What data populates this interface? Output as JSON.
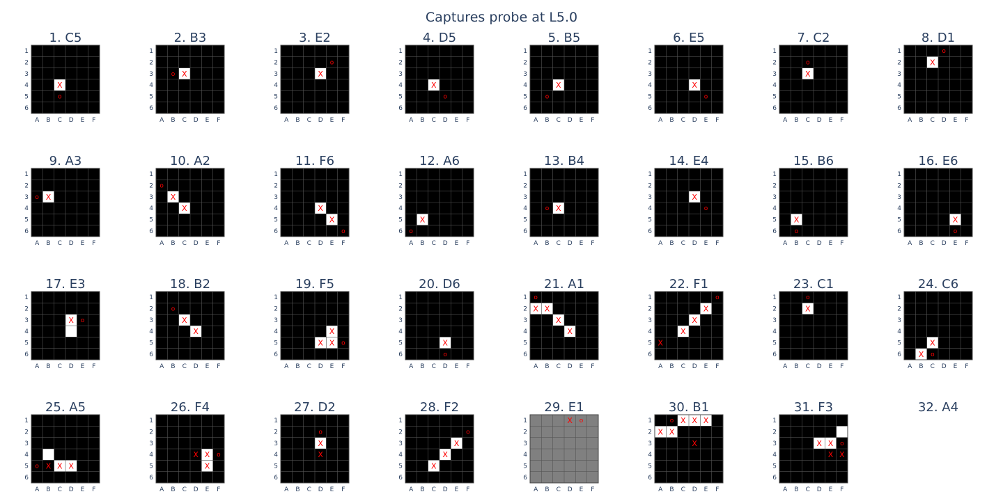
{
  "title": "Captures probe at L5.0",
  "colors": {
    "background": "#000000",
    "cell_fill": "#ffffff",
    "inactive_background": "#808080",
    "grid": "#555555",
    "mark": "#ff0000",
    "text": "#2a3f5f"
  },
  "chart_data": {
    "type": "heatmap",
    "title": "Captures probe at L5.0",
    "columns": [
      "A",
      "B",
      "C",
      "D",
      "E",
      "F"
    ],
    "rows": [
      "1",
      "2",
      "3",
      "4",
      "5",
      "6"
    ],
    "panels": [
      {
        "title": "1. C5",
        "white": [
          "C4"
        ],
        "x": [
          "C4"
        ],
        "o": [
          "C5"
        ]
      },
      {
        "title": "2. B3",
        "white": [
          "C3"
        ],
        "x": [
          "C3"
        ],
        "o": [
          "B3"
        ]
      },
      {
        "title": "3. E2",
        "white": [
          "D3"
        ],
        "x": [
          "D3"
        ],
        "o": [
          "E2"
        ]
      },
      {
        "title": "4. D5",
        "white": [
          "C4"
        ],
        "x": [
          "C4"
        ],
        "o": [
          "D5"
        ]
      },
      {
        "title": "5. B5",
        "white": [
          "C4"
        ],
        "x": [
          "C4"
        ],
        "o": [
          "B5"
        ]
      },
      {
        "title": "6. E5",
        "white": [
          "D4"
        ],
        "x": [
          "D4"
        ],
        "o": [
          "E5"
        ]
      },
      {
        "title": "7. C2",
        "white": [
          "C3"
        ],
        "x": [
          "C3"
        ],
        "o": [
          "C2"
        ]
      },
      {
        "title": "8. D1",
        "white": [
          "C2"
        ],
        "x": [
          "C2"
        ],
        "o": [
          "D1"
        ]
      },
      {
        "title": "9. A3",
        "white": [
          "B3"
        ],
        "x": [
          "B3"
        ],
        "o": [
          "A3"
        ]
      },
      {
        "title": "10. A2",
        "white": [
          "B3",
          "C4"
        ],
        "x": [
          "B3",
          "C4"
        ],
        "o": [
          "A2"
        ]
      },
      {
        "title": "11. F6",
        "white": [
          "D4",
          "E5"
        ],
        "x": [
          "D4",
          "E5"
        ],
        "o": [
          "F6"
        ]
      },
      {
        "title": "12. A6",
        "white": [
          "B5"
        ],
        "x": [
          "B5"
        ],
        "o": [
          "A6"
        ]
      },
      {
        "title": "13. B4",
        "white": [
          "C4"
        ],
        "x": [
          "C4"
        ],
        "o": [
          "B4"
        ]
      },
      {
        "title": "14. E4",
        "white": [
          "D3"
        ],
        "x": [
          "D3"
        ],
        "o": [
          "E4"
        ]
      },
      {
        "title": "15. B6",
        "white": [
          "B5"
        ],
        "x": [
          "B5"
        ],
        "o": [
          "B6"
        ]
      },
      {
        "title": "16. E6",
        "white": [
          "E5"
        ],
        "x": [
          "E5"
        ],
        "o": [
          "E6"
        ]
      },
      {
        "title": "17. E3",
        "white": [
          "D3",
          "D4"
        ],
        "x": [
          "D3"
        ],
        "o": [
          "E3"
        ]
      },
      {
        "title": "18. B2",
        "white": [
          "C3",
          "D4"
        ],
        "x": [
          "C3",
          "D4"
        ],
        "o": [
          "B2"
        ]
      },
      {
        "title": "19. F5",
        "white": [
          "E4",
          "D5",
          "E5"
        ],
        "x": [
          "E4",
          "D5",
          "E5"
        ],
        "o": [
          "F5"
        ]
      },
      {
        "title": "20. D6",
        "white": [
          "D5"
        ],
        "x": [
          "D5"
        ],
        "o": [
          "D6"
        ]
      },
      {
        "title": "21. A1",
        "white": [
          "A2",
          "B2",
          "C3",
          "D4"
        ],
        "x": [
          "A2",
          "B2",
          "C3",
          "D4"
        ],
        "o": [
          "A1"
        ]
      },
      {
        "title": "22. F1",
        "white": [
          "E2",
          "D3",
          "C4"
        ],
        "x": [
          "E2",
          "D3",
          "C4",
          "A5"
        ],
        "o": [
          "F1"
        ]
      },
      {
        "title": "23. C1",
        "white": [
          "C2"
        ],
        "x": [
          "C2"
        ],
        "o": [
          "C1"
        ]
      },
      {
        "title": "24. C6",
        "white": [
          "C5",
          "B6"
        ],
        "x": [
          "C5",
          "B6"
        ],
        "o": [
          "C6"
        ]
      },
      {
        "title": "25. A5",
        "white": [
          "B4",
          "C5",
          "D5"
        ],
        "x": [
          "B5",
          "C5",
          "D5"
        ],
        "o": [
          "A5"
        ]
      },
      {
        "title": "26. F4",
        "white": [
          "E4",
          "E5"
        ],
        "x": [
          "D4",
          "E4",
          "E5"
        ],
        "o": [
          "F4"
        ]
      },
      {
        "title": "27. D2",
        "white": [
          "D3"
        ],
        "x": [
          "D3",
          "D4"
        ],
        "o": [
          "D2"
        ]
      },
      {
        "title": "28. F2",
        "white": [
          "E3",
          "D4",
          "C5"
        ],
        "x": [
          "E3",
          "D4",
          "C5"
        ],
        "o": [
          "F2"
        ]
      },
      {
        "title": "29. E1",
        "white": [],
        "x": [
          "D1"
        ],
        "o": [
          "E1"
        ],
        "inactive": true
      },
      {
        "title": "30. B1",
        "white": [
          "C1",
          "D1",
          "E1",
          "A2",
          "B2"
        ],
        "x": [
          "C1",
          "D1",
          "E1",
          "A2",
          "B2",
          "D3"
        ],
        "o": [
          "B1"
        ]
      },
      {
        "title": "31. F3",
        "white": [
          "F2",
          "D3",
          "E3"
        ],
        "x": [
          "D3",
          "E3",
          "E4",
          "F4"
        ],
        "o": [
          "F3"
        ]
      },
      {
        "title": "32. A4",
        "empty": true
      }
    ]
  }
}
